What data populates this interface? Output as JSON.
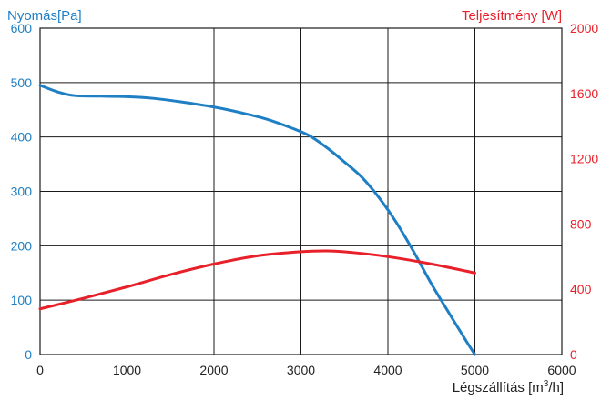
{
  "colors": {
    "pressure": "#1f7fc4",
    "power": "#e8202a",
    "axis_text": "#222222",
    "grid": "#1a1a1a"
  },
  "chart_data": {
    "type": "line",
    "grid": true,
    "x_axis": {
      "label_main": "Légszállítás [m",
      "label_sup": "3",
      "label_tail": "/h]",
      "range": [
        0,
        6000
      ],
      "ticks": [
        0,
        1000,
        2000,
        3000,
        4000,
        5000,
        6000
      ]
    },
    "y_left": {
      "title": "Nyomás[Pa]",
      "range": [
        0,
        600
      ],
      "ticks": [
        0,
        100,
        200,
        300,
        400,
        500,
        600
      ]
    },
    "y_right": {
      "title": "Teljesítmény [W]",
      "range": [
        0,
        2000
      ],
      "ticks": [
        0,
        400,
        800,
        1200,
        1600,
        2000
      ]
    },
    "series": [
      {
        "axis": "left",
        "x": [
          0,
          200,
          400,
          700,
          1000,
          1300,
          1600,
          2000,
          2300,
          2600,
          2900,
          3100,
          3300,
          3500,
          3700,
          3900,
          4100,
          4300,
          4500,
          4700,
          4900,
          5000
        ],
        "values": [
          495,
          483,
          476,
          475,
          474,
          471,
          465,
          455,
          445,
          433,
          416,
          402,
          380,
          354,
          326,
          288,
          242,
          188,
          130,
          77,
          25,
          0
        ]
      },
      {
        "axis": "right",
        "x": [
          0,
          500,
          1000,
          1500,
          2000,
          2500,
          3000,
          3300,
          3600,
          4000,
          4500,
          5000
        ],
        "values": [
          280,
          345,
          415,
          490,
          555,
          605,
          630,
          635,
          625,
          600,
          555,
          500
        ]
      }
    ]
  }
}
